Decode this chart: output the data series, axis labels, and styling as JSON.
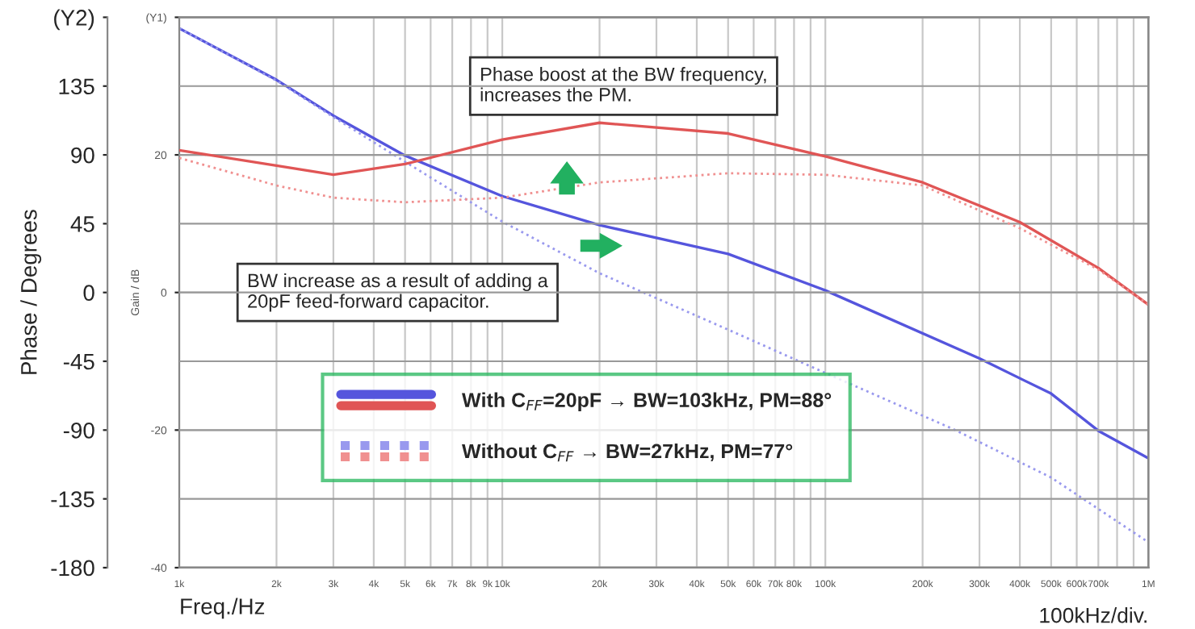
{
  "chart_data": {
    "type": "line",
    "xlabel": "Freq./Hz",
    "ylabel": "Gain / dB",
    "y2label": "Phase / Degrees",
    "annotations": [
      "Phase boost at the BW frequency,\nincreases the PM.",
      "BW increase as a result of adding a\n20pF feed-forward capacitor.",
      "100kHz/div."
    ],
    "log": "x",
    "grid": true,
    "legend": "bottom",
    "xlim": [
      1000,
      1000000
    ],
    "xticks": [
      {
        "value": 1000,
        "label": "1k"
      },
      {
        "value": 2000,
        "label": "2k"
      },
      {
        "value": 3000,
        "label": "3k"
      },
      {
        "value": 4000,
        "label": "4k"
      },
      {
        "value": 5000,
        "label": "5k"
      },
      {
        "value": 6000,
        "label": "6k"
      },
      {
        "value": 7000,
        "label": "7k"
      },
      {
        "value": 8000,
        "label": "8k"
      },
      {
        "value": 9000,
        "label": "9k"
      },
      {
        "value": 10000,
        "label": "10k"
      },
      {
        "value": 20000,
        "label": "20k"
      },
      {
        "value": 30000,
        "label": "30k"
      },
      {
        "value": 40000,
        "label": "40k"
      },
      {
        "value": 50000,
        "label": "50k"
      },
      {
        "value": 60000,
        "label": "60k"
      },
      {
        "value": 70000,
        "label": "70k"
      },
      {
        "value": 80000,
        "label": "80k"
      },
      {
        "value": 90000,
        "label": null
      },
      {
        "value": 100000,
        "label": "100k"
      },
      {
        "value": 200000,
        "label": "200k"
      },
      {
        "value": 300000,
        "label": "300k"
      },
      {
        "value": 400000,
        "label": "400k"
      },
      {
        "value": 500000,
        "label": "500k"
      },
      {
        "value": 600000,
        "label": "600k"
      },
      {
        "value": 700000,
        "label": "700k"
      },
      {
        "value": 800000,
        "label": null
      },
      {
        "value": 900000,
        "label": null
      },
      {
        "value": 1000000,
        "label": "1M"
      }
    ],
    "ylim": [
      -40,
      40
    ],
    "yticks": [
      -40,
      -20,
      0,
      20,
      {
        "value": 40,
        "label": "(Y1)"
      }
    ],
    "y2lim": [
      -180,
      180
    ],
    "y2ticks": [
      -180,
      -135,
      -90,
      -45,
      0,
      45,
      90,
      135,
      {
        "value": 180,
        "label": "(Y2)"
      }
    ],
    "series": [
      {
        "name": "With C$_{FF}$=20pF → BW=103kHz, PM=88°",
        "color": "#5555dd",
        "line_style": "solid",
        "x": [
          1000,
          2000,
          3000,
          5000,
          10000,
          20000,
          50000,
          100000,
          300000,
          500000,
          700000,
          1000000
        ],
        "values": [
          38.4,
          30.9,
          25.7,
          19.9,
          14.0,
          9.8,
          5.6,
          0.3,
          -9.6,
          -14.7,
          -20.1,
          -24.1
        ]
      },
      {
        "color": "#e05555",
        "line_style": "solid",
        "axis": "y2",
        "x": [
          1000,
          2000,
          3000,
          5000,
          10000,
          20000,
          50000,
          100000,
          200000,
          400000,
          700000,
          1000000
        ],
        "values": [
          93,
          83,
          77,
          84,
          100,
          111,
          104,
          89,
          72,
          46,
          16,
          -8
        ]
      },
      {
        "name": "Without C$_{FF}$ → BW=27kHz, PM=77°",
        "color": "#9999ee",
        "line_style": "dotted",
        "x": [
          1000,
          2000,
          3000,
          5000,
          10000,
          20000,
          50000,
          100000,
          250000,
          500000,
          1000000
        ],
        "values": [
          38.4,
          30.8,
          25.5,
          19.0,
          10.3,
          2.8,
          -5.4,
          -11.7,
          -19.9,
          -26.9,
          -36.3
        ]
      },
      {
        "color": "#f09090",
        "line_style": "dotted",
        "axis": "y2",
        "x": [
          1000,
          2000,
          3000,
          5000,
          10000,
          20000,
          50000,
          100000,
          200000,
          400000,
          700000,
          1000000
        ],
        "values": [
          88,
          70,
          62,
          59,
          62,
          72,
          78,
          77,
          70,
          42,
          15,
          -8
        ]
      }
    ]
  }
}
